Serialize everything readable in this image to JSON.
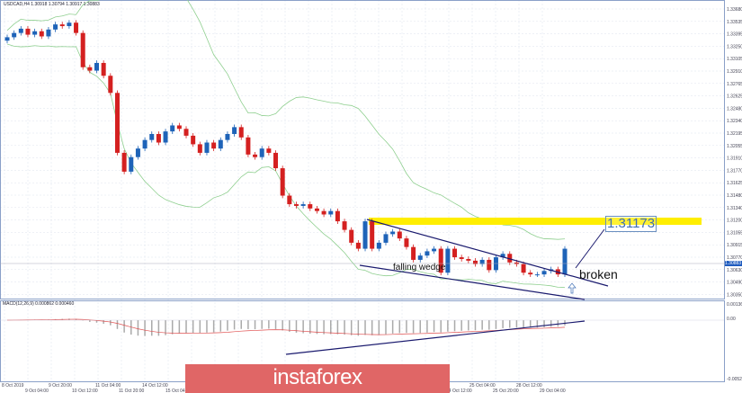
{
  "header": {
    "title": "USDCAD,H4  1.30918 1.30794 1.30917 1.30883"
  },
  "macd": {
    "label": "MACD(12,26,9) 0.000862 0.000460",
    "axis": [
      "0.001362",
      "0.00",
      "-0.005201"
    ]
  },
  "price_axis": [
    "1.33680",
    "1.33535",
    "1.33395",
    "1.33250",
    "1.33105",
    "1.32910",
    "1.32765",
    "1.32625",
    "1.32480",
    "1.32340",
    "1.32195",
    "1.32055",
    "1.31910",
    "1.31770",
    "1.31625",
    "1.31480",
    "1.31340",
    "1.31200",
    "1.31055",
    "1.30915",
    "1.30770",
    "1.30630",
    "1.30490",
    "1.30350"
  ],
  "current_price": "1.30883",
  "time_axis": [
    "8 Oct 2019",
    "9 Oct 04:00",
    "9 Oct 20:00",
    "10 Oct 12:00",
    "11 Oct 04:00",
    "11 Oct 20:00",
    "14 Oct 12:00",
    "15 Oct 04:00",
    "15 Oct 20:00",
    "16 Oct 12:00",
    "17 Oct 04:00",
    "17 Oct 20:00",
    "",
    "",
    "",
    "",
    "",
    "",
    "",
    "24 Oct 12:00",
    "25 Oct 04:00",
    "25 Oct 20:00",
    "28 Oct 12:00",
    "29 Oct 04:00"
  ],
  "annotations": {
    "level": "1.31173",
    "broken": "broken",
    "pattern": "falling wedge"
  },
  "logo": "instaforex",
  "colors": {
    "bull": "#1e63b8",
    "bear": "#d42020",
    "band": "#8fcf8f",
    "wedge": "#1a1a6e",
    "highlight": "#ffee00"
  },
  "closes": [
    1.3335,
    1.334,
    1.3345,
    1.3338,
    1.3342,
    1.3336,
    1.3344,
    1.335,
    1.3348,
    1.3352,
    1.334,
    1.33,
    1.3296,
    1.3305,
    1.329,
    1.327,
    1.32,
    1.3178,
    1.3195,
    1.3205,
    1.3215,
    1.3222,
    1.3212,
    1.3225,
    1.3232,
    1.3228,
    1.322,
    1.321,
    1.32,
    1.3212,
    1.3205,
    1.3215,
    1.3222,
    1.323,
    1.3218,
    1.3198,
    1.3195,
    1.3205,
    1.32,
    1.3182,
    1.315,
    1.314,
    1.3138,
    1.314,
    1.3135,
    1.3132,
    1.3128,
    1.3132,
    1.312,
    1.311,
    1.3095,
    1.3088,
    1.312,
    1.3088,
    1.3095,
    1.3105,
    1.3108,
    1.31,
    1.309,
    1.3075,
    1.308,
    1.3085,
    1.3088,
    1.306,
    1.3088,
    1.3078,
    1.3076,
    1.3074,
    1.307,
    1.3075,
    1.3063,
    1.3078,
    1.3082,
    1.3072,
    1.307,
    1.306,
    1.3058,
    1.3058,
    1.3062,
    1.3064,
    1.3058,
    1.3088
  ]
}
